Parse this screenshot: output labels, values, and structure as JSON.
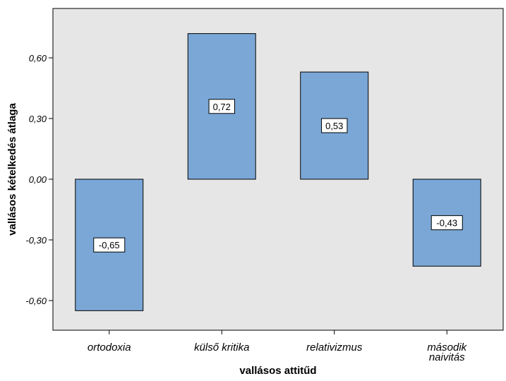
{
  "chart_data": {
    "type": "bar",
    "categories": [
      "ortodoxia",
      "külső kritika",
      "relativizmus",
      "második naivitás"
    ],
    "category_label_lines": [
      [
        "ortodoxia"
      ],
      [
        "külső kritika"
      ],
      [
        "relativizmus"
      ],
      [
        "második",
        "naivitás"
      ]
    ],
    "values": [
      -0.65,
      0.72,
      0.53,
      -0.43
    ],
    "data_labels": [
      "-0,65",
      "0,72",
      "0,53",
      "-0,43"
    ],
    "xlabel": "vallásos attitűd",
    "ylabel": "vallásos kételkedés átlaga",
    "ylim": [
      -0.75,
      0.84
    ],
    "yticks": [
      0.6,
      0.3,
      0.0,
      -0.3,
      -0.6
    ],
    "ytick_labels": [
      "0,60",
      "0,30",
      "0,00",
      "-0,30",
      "-0,60"
    ],
    "grid": false,
    "legend": "none",
    "colors": {
      "bar_fill": "#7aa7d6",
      "bar_stroke": "#000000",
      "plot_background": "#e6e6e6"
    }
  }
}
